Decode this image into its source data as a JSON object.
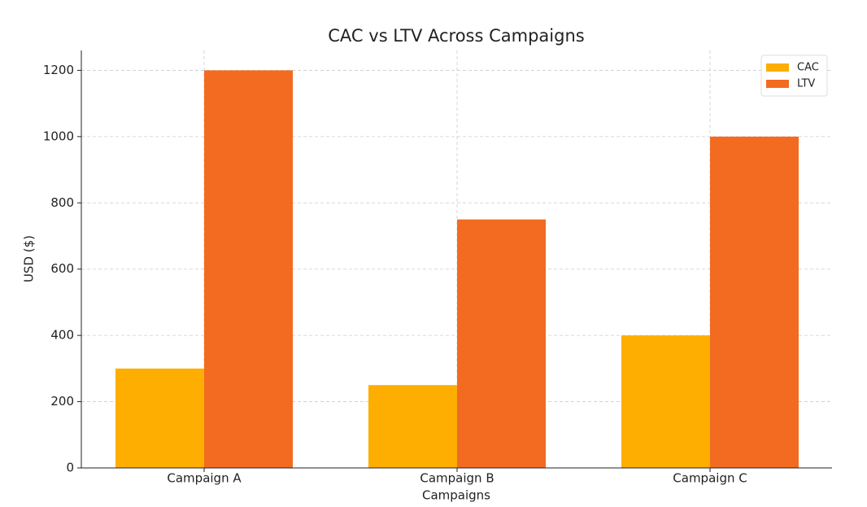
{
  "chart_data": {
    "type": "bar",
    "title": "CAC vs LTV Across Campaigns",
    "x_label": "Campaigns",
    "y_label": "USD ($)",
    "categories": [
      "Campaign A",
      "Campaign B",
      "Campaign C"
    ],
    "series": [
      {
        "name": "CAC",
        "color": "#fdae00",
        "values": [
          300,
          250,
          400
        ]
      },
      {
        "name": "LTV",
        "color": "#f26b21",
        "values": [
          1200,
          750,
          1000
        ]
      }
    ],
    "ylim": [
      0,
      1260
    ],
    "yticks": [
      0,
      200,
      400,
      600,
      800,
      1000,
      1200
    ],
    "grid": true,
    "legend": "upper right"
  }
}
